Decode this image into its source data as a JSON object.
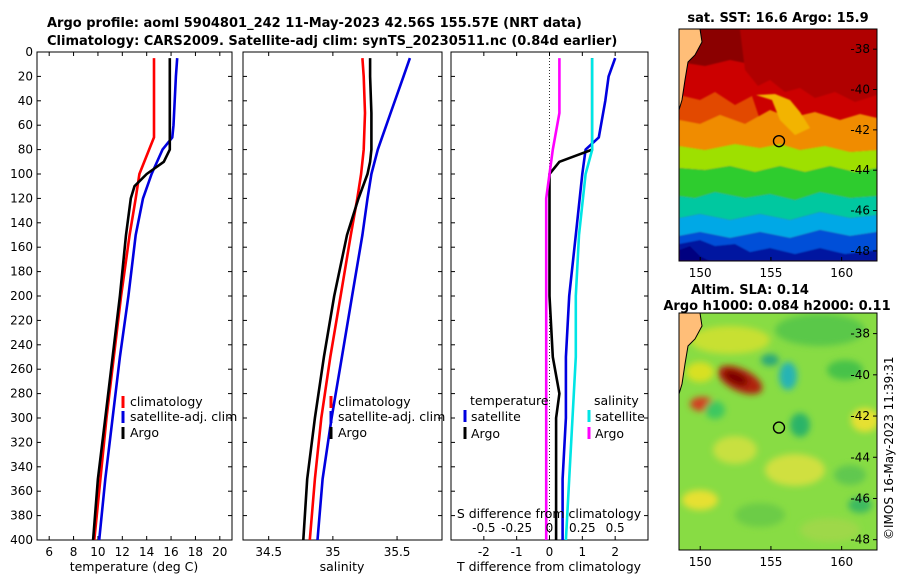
{
  "header": {
    "title_line1": "Argo profile: aoml 5904801_242 11-May-2023 42.56S 155.57E (NRT data)",
    "title_line2": "Climatology: CARS2009. Satellite-adj clim: synTS_20230511.nc (0.84d earlier)"
  },
  "colors": {
    "climatology": "#ff0000",
    "satellite": "#0000e0",
    "argo": "#000000",
    "s_diff_satellite": "#00e5e5",
    "s_diff_argo": "#ff00ff"
  },
  "chart_data": [
    {
      "type": "line",
      "id": "temperature",
      "xlabel": "temperature (deg C)",
      "ylabel": "",
      "xlim": [
        5,
        21
      ],
      "ylim": [
        400,
        0
      ],
      "xticks": [
        6,
        8,
        10,
        12,
        14,
        16,
        18,
        20
      ],
      "yticks": [
        0,
        20,
        40,
        60,
        80,
        100,
        120,
        140,
        160,
        180,
        200,
        220,
        240,
        260,
        280,
        300,
        320,
        340,
        360,
        380,
        400
      ],
      "legend": [
        "climatology",
        "satellite-adj. clim",
        "Argo"
      ],
      "series": [
        {
          "name": "climatology",
          "depth": [
            5,
            20,
            50,
            70,
            80,
            100,
            120,
            150,
            200,
            250,
            300,
            350,
            400
          ],
          "values": [
            14.6,
            14.6,
            14.6,
            14.6,
            14.2,
            13.4,
            13.1,
            12.6,
            11.9,
            11.3,
            10.7,
            10.2,
            9.7
          ]
        },
        {
          "name": "satellite-adj. clim",
          "depth": [
            5,
            20,
            40,
            60,
            70,
            80,
            100,
            120,
            150,
            200,
            250,
            300,
            350,
            400
          ],
          "values": [
            16.5,
            16.4,
            16.3,
            16.2,
            16.1,
            15.3,
            14.4,
            13.7,
            13.1,
            12.5,
            11.8,
            11.2,
            10.6,
            10.1
          ]
        },
        {
          "name": "Argo",
          "depth": [
            5,
            20,
            50,
            80,
            90,
            100,
            110,
            120,
            150,
            200,
            250,
            300,
            350,
            400
          ],
          "values": [
            15.9,
            15.9,
            15.9,
            15.9,
            15.4,
            14.0,
            13.0,
            12.7,
            12.3,
            11.8,
            11.2,
            10.6,
            10.0,
            9.6
          ]
        }
      ]
    },
    {
      "type": "line",
      "id": "salinity",
      "xlabel": "salinity",
      "ylabel": "",
      "xlim": [
        34.3,
        35.85
      ],
      "ylim": [
        400,
        0
      ],
      "xticks": [
        34.5,
        35,
        35.5
      ],
      "legend": [
        "climatology",
        "satellite-adj. clim",
        "Argo"
      ],
      "series": [
        {
          "name": "climatology",
          "depth": [
            5,
            20,
            50,
            80,
            100,
            120,
            150,
            200,
            250,
            300,
            350,
            400
          ],
          "values": [
            35.23,
            35.24,
            35.25,
            35.24,
            35.22,
            35.19,
            35.14,
            35.06,
            34.98,
            34.91,
            34.86,
            34.82
          ]
        },
        {
          "name": "satellite-adj. clim",
          "depth": [
            5,
            20,
            50,
            80,
            100,
            120,
            150,
            200,
            250,
            300,
            350,
            400
          ],
          "values": [
            35.6,
            35.55,
            35.45,
            35.35,
            35.3,
            35.27,
            35.23,
            35.15,
            35.07,
            34.99,
            34.92,
            34.88
          ]
        },
        {
          "name": "Argo",
          "depth": [
            5,
            20,
            50,
            80,
            90,
            100,
            120,
            150,
            200,
            250,
            300,
            350,
            400
          ],
          "values": [
            35.29,
            35.29,
            35.3,
            35.3,
            35.29,
            35.27,
            35.2,
            35.11,
            35.01,
            34.93,
            34.86,
            34.8,
            34.77
          ]
        }
      ]
    },
    {
      "type": "line",
      "id": "difference",
      "xlabel": "T difference from climatology",
      "x2label": "S difference from climatology",
      "ylabel": "",
      "xlim": [
        -3,
        3
      ],
      "ylim": [
        400,
        0
      ],
      "xticks": [
        -2,
        -1,
        0,
        1,
        2
      ],
      "x2ticks": [
        {
          "label": "-0.5",
          "pos": -2
        },
        {
          "label": "-0.25",
          "pos": -1
        },
        {
          "label": "0",
          "pos": 0
        },
        {
          "label": "0.25",
          "pos": 1
        },
        {
          "label": "0.5",
          "pos": 2
        }
      ],
      "legend_temperature_title": "temperature",
      "legend_salinity_title": "salinity",
      "legend_temperature": [
        "satellite",
        "Argo"
      ],
      "legend_salinity": [
        "satellite",
        "Argo"
      ],
      "series": [
        {
          "name": "T satellite",
          "depth": [
            5,
            20,
            40,
            70,
            80,
            100,
            150,
            200,
            250,
            300,
            350,
            400
          ],
          "values": [
            2.0,
            1.8,
            1.7,
            1.5,
            1.1,
            1.0,
            0.8,
            0.6,
            0.5,
            0.5,
            0.4,
            0.4
          ]
        },
        {
          "name": "T Argo",
          "depth": [
            5,
            20,
            50,
            80,
            85,
            90,
            100,
            150,
            200,
            250,
            280,
            300,
            350,
            400
          ],
          "values": [
            1.3,
            1.3,
            1.3,
            1.3,
            0.8,
            0.3,
            0.0,
            0.0,
            0.0,
            0.1,
            0.3,
            0.2,
            0.2,
            0.2
          ]
        },
        {
          "name": "S satellite",
          "depth": [
            5,
            20,
            50,
            80,
            100,
            150,
            200,
            250,
            300,
            350,
            400
          ],
          "values": [
            1.3,
            1.3,
            1.3,
            1.3,
            1.1,
            0.9,
            0.8,
            0.8,
            0.7,
            0.6,
            0.5
          ]
        },
        {
          "name": "S Argo",
          "depth": [
            5,
            20,
            50,
            80,
            100,
            120,
            150,
            200,
            250,
            300,
            350,
            400
          ],
          "values": [
            0.3,
            0.3,
            0.3,
            0.1,
            0.0,
            -0.1,
            -0.1,
            -0.1,
            -0.1,
            -0.1,
            -0.1,
            -0.1
          ]
        }
      ]
    },
    {
      "type": "heatmap",
      "id": "sst_map",
      "title": "sat. SST: 16.6 Argo: 15.9",
      "xlim": [
        148.5,
        162.5
      ],
      "ylim": [
        -48.5,
        -37
      ],
      "xticks": [
        150,
        155,
        160
      ],
      "yticks": [
        -38,
        -40,
        -42,
        -44,
        -46,
        -48
      ],
      "marker": [
        155.57,
        -42.56
      ]
    },
    {
      "type": "heatmap",
      "id": "sla_map",
      "title_line1": "Altim. SLA: 0.14",
      "title_line2": "Argo h1000: 0.084 h2000: 0.11",
      "xlim": [
        148.5,
        162.5
      ],
      "ylim": [
        -48.5,
        -37
      ],
      "xticks": [
        150,
        155,
        160
      ],
      "yticks": [
        -38,
        -40,
        -42,
        -44,
        -46,
        -48
      ],
      "marker": [
        155.57,
        -42.56
      ]
    }
  ],
  "credit": "©IMOS 16-May-2023 11:39:31"
}
